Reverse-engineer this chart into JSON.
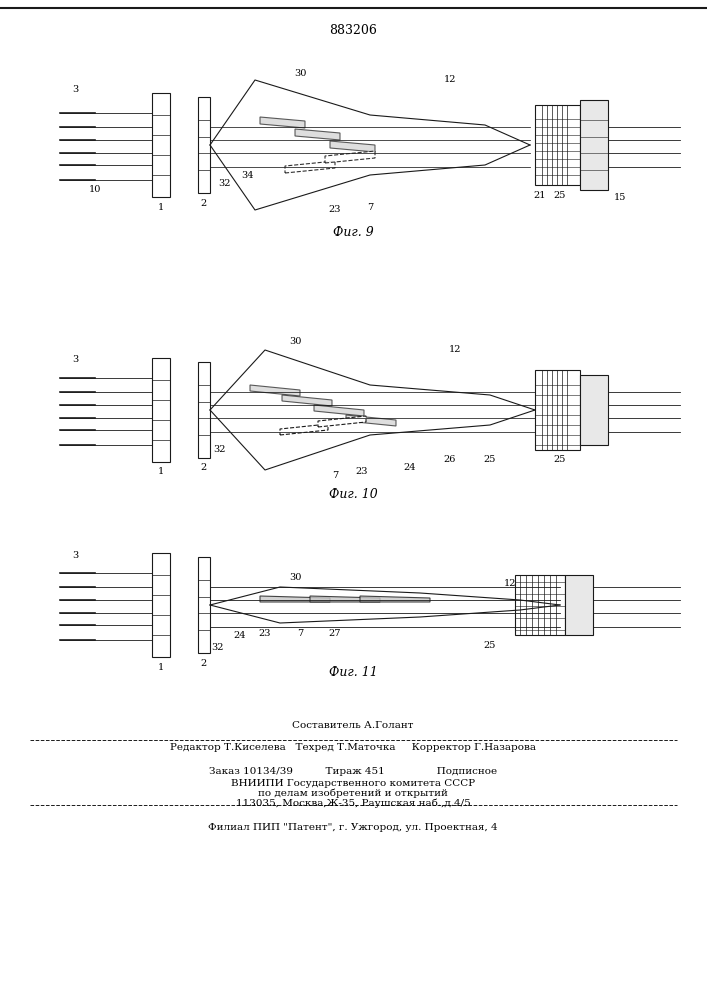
{
  "patent_number": "883206",
  "fig9_label": "Фиг. 9",
  "fig10_label": "Фиг. 10",
  "fig11_label": "Фиг. 11",
  "background": "#ffffff",
  "line_color": "#1a1a1a",
  "footer_lines": [
    "Составитель А.Голант",
    "Редактор Т.Киселева   Техред Т.Маточка     Корректор Г.Назарова",
    "Заказ 10134/39          Тираж 451                Подписное",
    "ВНИИПИ Государственного комитета СССР",
    "по делам изобретений и открытий",
    "113035, Москва,Ж-35, Раушская наб.,д.4/5",
    "Филиал ПИП \"Патент\", г. Ужгород, ул. Проектная, 4"
  ]
}
